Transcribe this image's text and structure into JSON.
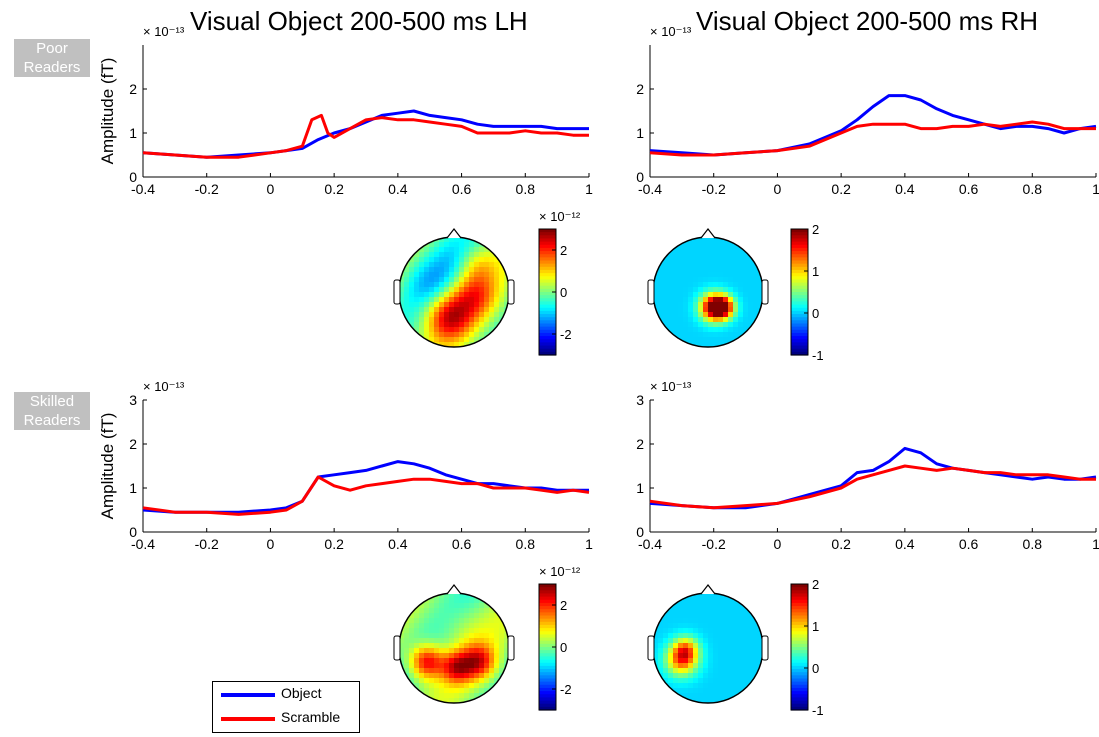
{
  "row_labels": {
    "poor": [
      "Poor",
      "Readers"
    ],
    "skilled": [
      "Skilled",
      "Readers"
    ]
  },
  "titles": {
    "left": "Visual Object 200-500 ms LH",
    "right": "Visual Object 200-500 ms RH"
  },
  "colors": {
    "object": "#0000ff",
    "scramble": "#ff0000"
  },
  "legend": [
    "Object",
    "Scramble"
  ],
  "chart_data": [
    {
      "type": "line",
      "id": "poor-lh",
      "ylabel": "Amplitude (fT)",
      "y_exponent": "× 10⁻¹³",
      "xlim": [
        -0.4,
        1
      ],
      "ylim": [
        0,
        3
      ],
      "xticks": [
        "-0.4",
        "-0.2",
        "0",
        "0.2",
        "0.4",
        "0.6",
        "0.8",
        "1"
      ],
      "yticks": [
        "0",
        "1",
        "2"
      ],
      "series": [
        {
          "name": "Object",
          "x": [
            -0.4,
            -0.3,
            -0.2,
            -0.1,
            0,
            0.05,
            0.1,
            0.15,
            0.2,
            0.25,
            0.3,
            0.35,
            0.4,
            0.45,
            0.5,
            0.55,
            0.6,
            0.65,
            0.7,
            0.75,
            0.8,
            0.85,
            0.9,
            0.95,
            1
          ],
          "y": [
            0.55,
            0.5,
            0.45,
            0.5,
            0.55,
            0.6,
            0.65,
            0.85,
            1.0,
            1.1,
            1.25,
            1.4,
            1.45,
            1.5,
            1.4,
            1.35,
            1.3,
            1.2,
            1.15,
            1.15,
            1.15,
            1.15,
            1.1,
            1.1,
            1.1
          ]
        },
        {
          "name": "Scramble",
          "x": [
            -0.4,
            -0.3,
            -0.2,
            -0.1,
            0,
            0.05,
            0.1,
            0.13,
            0.16,
            0.18,
            0.2,
            0.25,
            0.3,
            0.35,
            0.4,
            0.45,
            0.5,
            0.55,
            0.6,
            0.65,
            0.7,
            0.75,
            0.8,
            0.85,
            0.9,
            0.95,
            1
          ],
          "y": [
            0.55,
            0.5,
            0.45,
            0.45,
            0.55,
            0.6,
            0.7,
            1.3,
            1.4,
            1.0,
            0.9,
            1.1,
            1.3,
            1.35,
            1.3,
            1.3,
            1.25,
            1.2,
            1.15,
            1.0,
            1.0,
            1.0,
            1.05,
            1.0,
            1.0,
            0.95,
            0.95
          ]
        }
      ]
    },
    {
      "type": "line",
      "id": "poor-rh",
      "ylabel": "",
      "y_exponent": "× 10⁻¹³",
      "xlim": [
        -0.4,
        1
      ],
      "ylim": [
        0,
        3
      ],
      "xticks": [
        "-0.4",
        "-0.2",
        "0",
        "0.2",
        "0.4",
        "0.6",
        "0.8",
        "1"
      ],
      "yticks": [
        "0",
        "1",
        "2"
      ],
      "series": [
        {
          "name": "Object",
          "x": [
            -0.4,
            -0.3,
            -0.2,
            -0.1,
            0,
            0.1,
            0.2,
            0.25,
            0.3,
            0.35,
            0.4,
            0.45,
            0.5,
            0.55,
            0.6,
            0.65,
            0.7,
            0.75,
            0.8,
            0.85,
            0.9,
            0.95,
            1
          ],
          "y": [
            0.6,
            0.55,
            0.5,
            0.55,
            0.6,
            0.75,
            1.05,
            1.3,
            1.6,
            1.85,
            1.85,
            1.75,
            1.55,
            1.4,
            1.3,
            1.2,
            1.1,
            1.15,
            1.15,
            1.1,
            1.0,
            1.1,
            1.15
          ]
        },
        {
          "name": "Scramble",
          "x": [
            -0.4,
            -0.3,
            -0.2,
            -0.1,
            0,
            0.1,
            0.2,
            0.25,
            0.3,
            0.35,
            0.4,
            0.45,
            0.5,
            0.55,
            0.6,
            0.65,
            0.7,
            0.75,
            0.8,
            0.85,
            0.9,
            0.95,
            1
          ],
          "y": [
            0.55,
            0.5,
            0.5,
            0.55,
            0.6,
            0.7,
            1.0,
            1.15,
            1.2,
            1.2,
            1.2,
            1.1,
            1.1,
            1.15,
            1.15,
            1.2,
            1.15,
            1.2,
            1.25,
            1.2,
            1.1,
            1.1,
            1.1
          ]
        }
      ]
    },
    {
      "type": "line",
      "id": "skilled-lh",
      "ylabel": "Amplitude (fT)",
      "y_exponent": "× 10⁻¹³",
      "xlim": [
        -0.4,
        1
      ],
      "ylim": [
        0,
        3
      ],
      "xticks": [
        "-0.4",
        "-0.2",
        "0",
        "0.2",
        "0.4",
        "0.6",
        "0.8",
        "1"
      ],
      "yticks": [
        "0",
        "1",
        "2",
        "3"
      ],
      "series": [
        {
          "name": "Object",
          "x": [
            -0.4,
            -0.3,
            -0.2,
            -0.1,
            0,
            0.05,
            0.1,
            0.15,
            0.2,
            0.25,
            0.3,
            0.35,
            0.4,
            0.45,
            0.5,
            0.55,
            0.6,
            0.65,
            0.7,
            0.75,
            0.8,
            0.85,
            0.9,
            0.95,
            1
          ],
          "y": [
            0.5,
            0.45,
            0.45,
            0.45,
            0.5,
            0.55,
            0.7,
            1.25,
            1.3,
            1.35,
            1.4,
            1.5,
            1.6,
            1.55,
            1.45,
            1.3,
            1.2,
            1.1,
            1.1,
            1.05,
            1.0,
            1.0,
            0.95,
            0.95,
            0.95
          ]
        },
        {
          "name": "Scramble",
          "x": [
            -0.4,
            -0.3,
            -0.2,
            -0.1,
            0,
            0.05,
            0.1,
            0.15,
            0.2,
            0.25,
            0.3,
            0.35,
            0.4,
            0.45,
            0.5,
            0.55,
            0.6,
            0.65,
            0.7,
            0.75,
            0.8,
            0.85,
            0.9,
            0.95,
            1
          ],
          "y": [
            0.55,
            0.45,
            0.45,
            0.4,
            0.45,
            0.5,
            0.7,
            1.25,
            1.05,
            0.95,
            1.05,
            1.1,
            1.15,
            1.2,
            1.2,
            1.15,
            1.1,
            1.1,
            1.0,
            1.0,
            1.0,
            0.95,
            0.9,
            0.95,
            0.9
          ]
        }
      ]
    },
    {
      "type": "line",
      "id": "skilled-rh",
      "ylabel": "",
      "y_exponent": "× 10⁻¹³",
      "xlim": [
        -0.4,
        1
      ],
      "ylim": [
        0,
        3
      ],
      "xticks": [
        "-0.4",
        "-0.2",
        "0",
        "0.2",
        "0.4",
        "0.6",
        "0.8",
        "1"
      ],
      "yticks": [
        "0",
        "1",
        "2",
        "3"
      ],
      "series": [
        {
          "name": "Object",
          "x": [
            -0.4,
            -0.3,
            -0.2,
            -0.1,
            0,
            0.1,
            0.2,
            0.25,
            0.3,
            0.35,
            0.4,
            0.45,
            0.5,
            0.55,
            0.6,
            0.65,
            0.7,
            0.75,
            0.8,
            0.85,
            0.9,
            0.95,
            1
          ],
          "y": [
            0.65,
            0.6,
            0.55,
            0.55,
            0.65,
            0.85,
            1.05,
            1.35,
            1.4,
            1.6,
            1.9,
            1.8,
            1.55,
            1.45,
            1.4,
            1.35,
            1.3,
            1.25,
            1.2,
            1.25,
            1.2,
            1.2,
            1.25
          ]
        },
        {
          "name": "Scramble",
          "x": [
            -0.4,
            -0.3,
            -0.2,
            -0.1,
            0,
            0.1,
            0.2,
            0.25,
            0.3,
            0.35,
            0.4,
            0.45,
            0.5,
            0.55,
            0.6,
            0.65,
            0.7,
            0.75,
            0.8,
            0.85,
            0.9,
            0.95,
            1
          ],
          "y": [
            0.7,
            0.6,
            0.55,
            0.6,
            0.65,
            0.8,
            1.0,
            1.2,
            1.3,
            1.4,
            1.5,
            1.45,
            1.4,
            1.45,
            1.4,
            1.35,
            1.35,
            1.3,
            1.3,
            1.3,
            1.25,
            1.2,
            1.2
          ]
        }
      ]
    },
    {
      "type": "heatmap",
      "id": "poor-lh-topo",
      "colorbar": {
        "exponent": "× 10⁻¹²",
        "ticks": [
          "2",
          "0",
          "-2"
        ],
        "range": [
          -3,
          3
        ]
      },
      "blobs": [
        {
          "u": -0.1,
          "v": 0.45,
          "value": 2.2,
          "spread": 0.3
        },
        {
          "u": 0.35,
          "v": 0.05,
          "value": 1.6,
          "spread": 0.3
        },
        {
          "u": -0.45,
          "v": -0.15,
          "value": -0.8,
          "spread": 0.35
        },
        {
          "u": 0.1,
          "v": -0.55,
          "value": -0.6,
          "spread": 0.35
        },
        {
          "u": 0.4,
          "v": -0.5,
          "value": 1.0,
          "spread": 0.25
        }
      ],
      "baseline": 0.9
    },
    {
      "type": "heatmap",
      "id": "poor-rh-topo",
      "colorbar": {
        "exponent": "",
        "ticks": [
          "2",
          "1",
          "0",
          "-1"
        ],
        "range": [
          -1,
          2
        ]
      },
      "blobs": [
        {
          "u": 0.1,
          "v": 0.28,
          "value": 2.0,
          "spread": 0.17
        },
        {
          "u": 0.28,
          "v": 0.28,
          "value": 1.6,
          "spread": 0.14
        }
      ],
      "baseline": 0.0
    },
    {
      "type": "heatmap",
      "id": "skilled-lh-topo",
      "colorbar": {
        "exponent": "× 10⁻¹²",
        "ticks": [
          "2",
          "0",
          "-2"
        ],
        "range": [
          -3,
          3
        ]
      },
      "blobs": [
        {
          "u": -0.5,
          "v": 0.25,
          "value": 2.6,
          "spread": 0.22
        },
        {
          "u": 0.05,
          "v": 0.35,
          "value": 2.0,
          "spread": 0.2
        },
        {
          "u": 0.45,
          "v": 0.25,
          "value": 2.0,
          "spread": 0.22
        },
        {
          "u": 0.1,
          "v": -0.35,
          "value": 0.4,
          "spread": 0.35
        }
      ],
      "baseline": 0.9
    },
    {
      "type": "heatmap",
      "id": "skilled-rh-topo",
      "colorbar": {
        "exponent": "",
        "ticks": [
          "2",
          "1",
          "0",
          "-1"
        ],
        "range": [
          -1,
          2
        ]
      },
      "blobs": [
        {
          "u": -0.48,
          "v": 0.22,
          "value": 1.3,
          "spread": 0.2
        },
        {
          "u": -0.4,
          "v": 0.02,
          "value": 0.9,
          "spread": 0.16
        }
      ],
      "baseline": 0.0
    }
  ]
}
